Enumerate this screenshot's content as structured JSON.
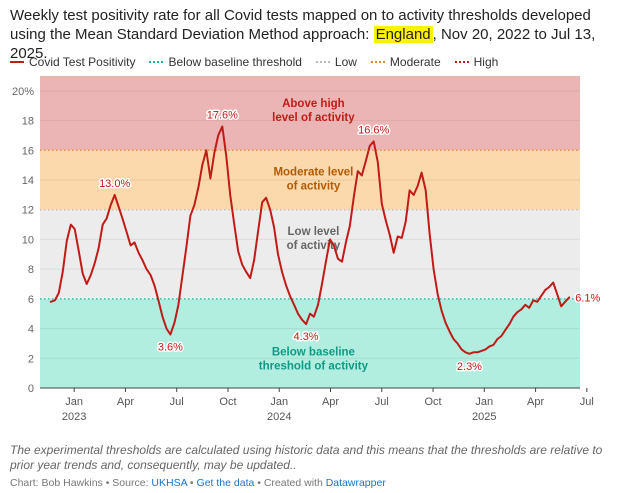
{
  "header": {
    "title_pre": "Weekly test positivity rate for all Covid tests mapped on to activity thresholds developed using the Mean Standard Deviation Method approach: ",
    "title_highlight": "England",
    "title_post": ", Nov 20, 2022 to Jul 13, 2025."
  },
  "legend": {
    "line": "Covid Test Positivity",
    "baseline": "Below baseline threshold",
    "low": "Low",
    "moderate": "Moderate",
    "high": "High"
  },
  "colors": {
    "line": "#c11b17",
    "band_high": "#ecb5b5",
    "band_moderate": "#fcd9ad",
    "band_low": "#ececec",
    "band_baseline": "#b1eee0",
    "baseline_line": "#14b8a6",
    "moderate_line": "#e8891a",
    "low_line": "#bbbbbb",
    "text_high": "#c11b17",
    "text_moderate": "#b35a00",
    "text_low": "#666666",
    "text_baseline": "#0f9a86"
  },
  "chart_data": {
    "type": "line",
    "title": "Weekly test positivity rate for all Covid tests mapped on to activity thresholds developed using the Mean Standard Deviation Method approach: England, Nov 20, 2022 to Jul 13, 2025.",
    "xlabel": "",
    "ylabel": "",
    "ylim": [
      0,
      21
    ],
    "yticks": [
      0,
      2,
      4,
      6,
      8,
      10,
      12,
      14,
      16,
      18,
      20
    ],
    "ytick_labels": [
      "0",
      "2",
      "4",
      "6",
      "8",
      "10",
      "12",
      "14",
      "16",
      "18",
      "20%"
    ],
    "x_start": "2022-11-20",
    "x_end": "2025-07-13",
    "x_unit": "months since 2022-11-01 (week points)",
    "xticks": [
      {
        "x": 2,
        "label": "Jan",
        "year": "2023"
      },
      {
        "x": 5,
        "label": "Apr",
        "year": ""
      },
      {
        "x": 8,
        "label": "Jul",
        "year": ""
      },
      {
        "x": 11,
        "label": "Oct",
        "year": ""
      },
      {
        "x": 14,
        "label": "Jan",
        "year": "2024"
      },
      {
        "x": 17,
        "label": "Apr",
        "year": ""
      },
      {
        "x": 20,
        "label": "Jul",
        "year": ""
      },
      {
        "x": 23,
        "label": "Oct",
        "year": ""
      },
      {
        "x": 26,
        "label": "Jan",
        "year": "2025"
      },
      {
        "x": 29,
        "label": "Apr",
        "year": ""
      },
      {
        "x": 32,
        "label": "Jul",
        "year": ""
      }
    ],
    "thresholds": [
      {
        "name": "Below baseline threshold",
        "from": 0,
        "to": 6
      },
      {
        "name": "Low",
        "from": 6,
        "to": 12
      },
      {
        "name": "Moderate",
        "from": 12,
        "to": 16
      },
      {
        "name": "High",
        "from": 16,
        "to": 21
      }
    ],
    "band_labels": [
      {
        "line1": "Above high",
        "line2": "level of activity",
        "x": 16.0,
        "y": 18.9,
        "style": "high"
      },
      {
        "line1": "Moderate level",
        "line2": "of activity",
        "x": 16.0,
        "y": 14.3,
        "style": "moderate"
      },
      {
        "line1": "Low level",
        "line2": "of activity",
        "x": 16.0,
        "y": 10.3,
        "style": "low"
      },
      {
        "line1": "Below baseline",
        "line2": "threshold of activity",
        "x": 16.0,
        "y": 2.2,
        "style": "baseline"
      }
    ],
    "series": [
      {
        "name": "Covid Test Positivity",
        "points": [
          [
            0.63,
            5.8
          ],
          [
            0.87,
            5.9
          ],
          [
            1.1,
            6.4
          ],
          [
            1.33,
            7.8
          ],
          [
            1.57,
            9.9
          ],
          [
            1.8,
            11.0
          ],
          [
            2.03,
            10.7
          ],
          [
            2.27,
            9.2
          ],
          [
            2.5,
            7.7
          ],
          [
            2.73,
            7.0
          ],
          [
            2.97,
            7.6
          ],
          [
            3.2,
            8.4
          ],
          [
            3.43,
            9.4
          ],
          [
            3.67,
            11.0
          ],
          [
            3.9,
            11.4
          ],
          [
            4.13,
            12.3
          ],
          [
            4.37,
            13.0
          ],
          [
            4.6,
            12.2
          ],
          [
            4.83,
            11.4
          ],
          [
            5.07,
            10.5
          ],
          [
            5.3,
            9.6
          ],
          [
            5.53,
            9.8
          ],
          [
            5.77,
            9.1
          ],
          [
            6.0,
            8.6
          ],
          [
            6.23,
            8.0
          ],
          [
            6.47,
            7.6
          ],
          [
            6.7,
            6.9
          ],
          [
            6.93,
            5.9
          ],
          [
            7.17,
            4.8
          ],
          [
            7.4,
            4.0
          ],
          [
            7.63,
            3.6
          ],
          [
            7.87,
            4.4
          ],
          [
            8.1,
            5.6
          ],
          [
            8.33,
            7.5
          ],
          [
            8.57,
            9.5
          ],
          [
            8.8,
            11.6
          ],
          [
            9.03,
            12.3
          ],
          [
            9.27,
            13.5
          ],
          [
            9.5,
            15.0
          ],
          [
            9.73,
            16.0
          ],
          [
            9.97,
            14.1
          ],
          [
            10.2,
            15.8
          ],
          [
            10.43,
            17.0
          ],
          [
            10.67,
            17.6
          ],
          [
            10.9,
            15.6
          ],
          [
            11.13,
            13.0
          ],
          [
            11.37,
            11.0
          ],
          [
            11.6,
            9.2
          ],
          [
            11.83,
            8.3
          ],
          [
            12.07,
            7.8
          ],
          [
            12.3,
            7.4
          ],
          [
            12.53,
            8.6
          ],
          [
            12.77,
            10.6
          ],
          [
            13.0,
            12.5
          ],
          [
            13.23,
            12.8
          ],
          [
            13.47,
            12.0
          ],
          [
            13.7,
            10.8
          ],
          [
            13.93,
            9.0
          ],
          [
            14.17,
            7.8
          ],
          [
            14.4,
            6.9
          ],
          [
            14.63,
            6.2
          ],
          [
            14.87,
            5.6
          ],
          [
            15.1,
            5.0
          ],
          [
            15.33,
            4.6
          ],
          [
            15.57,
            4.3
          ],
          [
            15.8,
            5.0
          ],
          [
            16.03,
            4.8
          ],
          [
            16.27,
            5.6
          ],
          [
            16.5,
            7.0
          ],
          [
            16.73,
            8.5
          ],
          [
            16.97,
            10.0
          ],
          [
            17.2,
            9.6
          ],
          [
            17.43,
            8.7
          ],
          [
            17.67,
            8.5
          ],
          [
            17.9,
            9.8
          ],
          [
            18.13,
            10.9
          ],
          [
            18.37,
            12.9
          ],
          [
            18.6,
            14.6
          ],
          [
            18.83,
            14.3
          ],
          [
            19.07,
            15.3
          ],
          [
            19.3,
            16.3
          ],
          [
            19.53,
            16.6
          ],
          [
            19.77,
            15.2
          ],
          [
            20.0,
            12.4
          ],
          [
            20.23,
            11.3
          ],
          [
            20.47,
            10.3
          ],
          [
            20.7,
            9.1
          ],
          [
            20.93,
            10.2
          ],
          [
            21.17,
            10.1
          ],
          [
            21.4,
            11.2
          ],
          [
            21.63,
            13.3
          ],
          [
            21.87,
            13.0
          ],
          [
            22.1,
            13.6
          ],
          [
            22.33,
            14.5
          ],
          [
            22.57,
            13.3
          ],
          [
            22.8,
            10.4
          ],
          [
            23.03,
            8.0
          ],
          [
            23.27,
            6.3
          ],
          [
            23.5,
            5.2
          ],
          [
            23.73,
            4.4
          ],
          [
            23.97,
            3.8
          ],
          [
            24.2,
            3.3
          ],
          [
            24.43,
            3.0
          ],
          [
            24.67,
            2.6
          ],
          [
            24.9,
            2.4
          ],
          [
            25.13,
            2.3
          ],
          [
            25.37,
            2.4
          ],
          [
            25.6,
            2.4
          ],
          [
            25.83,
            2.5
          ],
          [
            26.07,
            2.6
          ],
          [
            26.3,
            2.8
          ],
          [
            26.53,
            2.9
          ],
          [
            26.77,
            3.3
          ],
          [
            27.0,
            3.5
          ],
          [
            27.23,
            3.9
          ],
          [
            27.47,
            4.3
          ],
          [
            27.7,
            4.8
          ],
          [
            27.93,
            5.1
          ],
          [
            28.17,
            5.3
          ],
          [
            28.4,
            5.6
          ],
          [
            28.63,
            5.4
          ],
          [
            28.87,
            5.9
          ],
          [
            29.1,
            5.8
          ],
          [
            29.33,
            6.2
          ],
          [
            29.57,
            6.6
          ],
          [
            29.8,
            6.8
          ],
          [
            30.03,
            7.1
          ],
          [
            30.27,
            6.3
          ],
          [
            30.5,
            5.5
          ],
          [
            30.73,
            5.8
          ],
          [
            30.97,
            6.1
          ]
        ]
      }
    ],
    "annotations": [
      {
        "text": "13.0%",
        "x": 4.37,
        "y": 13.0,
        "pos": "above"
      },
      {
        "text": "17.6%",
        "x": 10.67,
        "y": 17.6,
        "pos": "above"
      },
      {
        "text": "3.6%",
        "x": 7.63,
        "y": 3.6,
        "pos": "below"
      },
      {
        "text": "4.3%",
        "x": 15.57,
        "y": 4.3,
        "pos": "below"
      },
      {
        "text": "16.6%",
        "x": 19.53,
        "y": 16.6,
        "pos": "above"
      },
      {
        "text": "2.3%",
        "x": 25.13,
        "y": 2.3,
        "pos": "below"
      },
      {
        "text": "6.1%",
        "x": 30.97,
        "y": 6.1,
        "pos": "right"
      }
    ]
  },
  "footer": {
    "note": "The experimental thresholds are calculated using historic data and this means that the thresholds are relative to prior year trends and, consequently, may be updated..",
    "source_prefix": "Chart: Bob Hawkins • Source: ",
    "source_link": "UKHSA",
    "sep1": " • ",
    "get_data": "Get the data",
    "sep2": " • Created with ",
    "datawrapper": "Datawrapper"
  }
}
